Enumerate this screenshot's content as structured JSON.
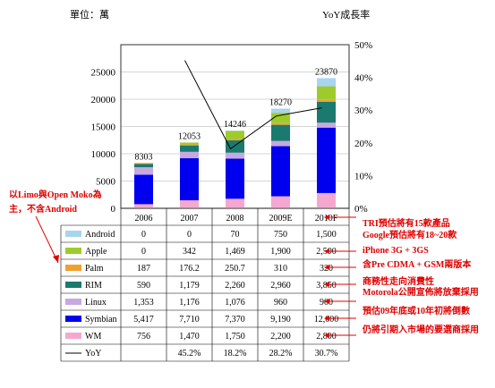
{
  "chart_data": {
    "type": "bar",
    "title": "",
    "unit_label": "單位：萬",
    "y2label": "YoY成長率",
    "ylim": [
      0,
      30000
    ],
    "y_ticks": [
      "0",
      "5000",
      "10000",
      "15000",
      "20000",
      "25000"
    ],
    "y2lim": [
      0,
      50
    ],
    "y2_ticks": [
      "0%",
      "10%",
      "20%",
      "30%",
      "40%",
      "50%"
    ],
    "categories": [
      "2006",
      "2007",
      "2008",
      "2009E",
      "2010F"
    ],
    "totals": [
      "8303",
      "12053",
      "14246",
      "18270",
      "23870"
    ],
    "totals_values": [
      8303,
      12053,
      14246,
      18270,
      23870
    ],
    "series": [
      {
        "name": "Android",
        "color": "#a8d4f0",
        "values": [
          0,
          0,
          70,
          750,
          1500
        ],
        "labels": [
          "0",
          "0",
          "70",
          "750",
          "1,500"
        ]
      },
      {
        "name": "Apple",
        "color": "#9ecb2c",
        "values": [
          0,
          342,
          1469,
          1900,
          2500
        ],
        "labels": [
          "0",
          "342",
          "1,469",
          "1,900",
          "2,500"
        ]
      },
      {
        "name": "Palm",
        "color": "#f0a030",
        "values": [
          187,
          176.2,
          250.7,
          310,
          320
        ],
        "labels": [
          "187",
          "176.2",
          "250.7",
          "310",
          "320"
        ]
      },
      {
        "name": "RIM",
        "color": "#1a7a70",
        "values": [
          590,
          1179,
          2260,
          2960,
          3850
        ],
        "labels": [
          "590",
          "1,179",
          "2,260",
          "2,960",
          "3,850"
        ]
      },
      {
        "name": "Linux",
        "color": "#c8a8e0",
        "values": [
          1353,
          1176,
          1076,
          960,
          900
        ],
        "labels": [
          "1,353",
          "1,176",
          "1,076",
          "960",
          "900"
        ]
      },
      {
        "name": "Symbian",
        "color": "#0000ee",
        "values": [
          5417,
          7710,
          7370,
          9190,
          12000
        ],
        "labels": [
          "5,417",
          "7,710",
          "7,370",
          "9,190",
          "12,000"
        ]
      },
      {
        "name": "WM",
        "color": "#f4a8d0",
        "values": [
          756,
          1470,
          1750,
          2200,
          2800
        ],
        "labels": [
          "756",
          "1,470",
          "1,750",
          "2,200",
          "2,800"
        ]
      }
    ],
    "yoy": {
      "name": "YoY",
      "color": "#000000",
      "values": [
        null,
        45.2,
        18.2,
        28.2,
        30.7
      ],
      "labels": [
        "",
        "45.2%",
        "18.2%",
        "28.2%",
        "30.7%"
      ]
    },
    "legend": "table-left",
    "grid": true
  },
  "annotations": {
    "left_note": "以Limo與Open Moko為主，不含Android",
    "right_notes": [
      "TRI預估將有15款產品\nGoogle預估將有18~20款",
      "iPhone 3G + 3GS",
      "含Pre CDMA + GSM兩版本",
      "商務性走向消費性",
      "Motorola公開宣佈將放棄採用",
      "預估09年底或10年初將倒數",
      "仍將引期入市場的要選商採用"
    ]
  }
}
